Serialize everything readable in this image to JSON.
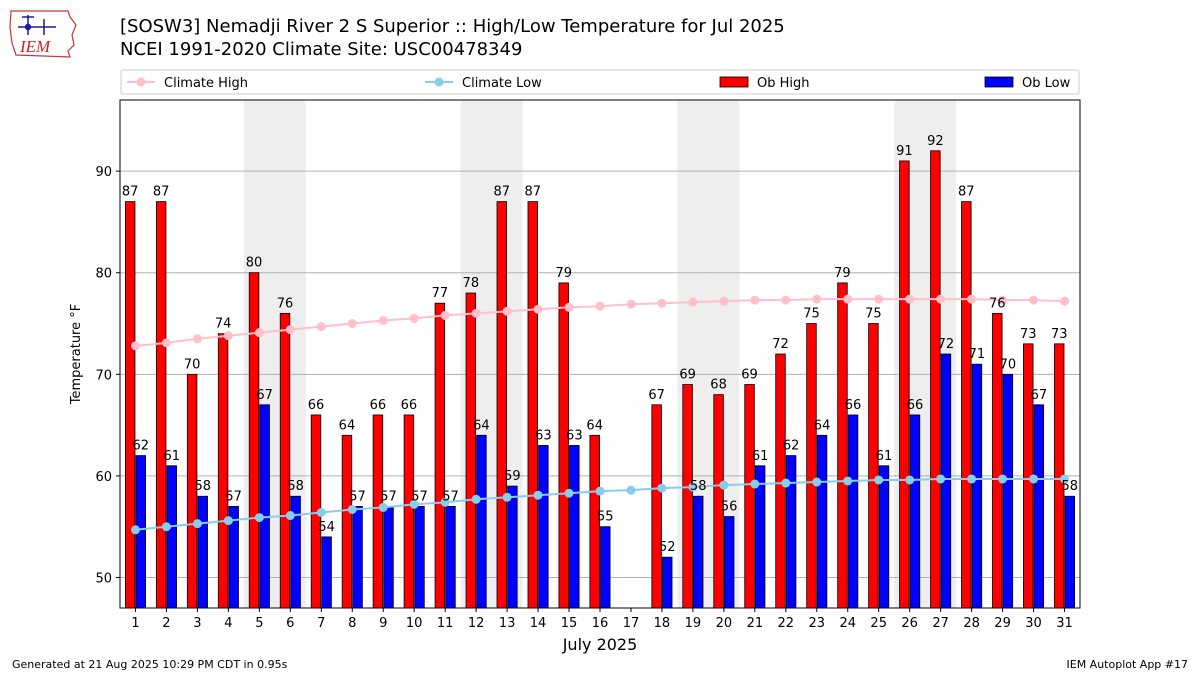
{
  "header": {
    "title_line1": "[SOSW3] Nemadji River 2 S Superior :: High/Low Temperature for Jul 2025",
    "title_line2": "NCEI 1991-2020 Climate Site: USC00478349",
    "logo_text": "IEM"
  },
  "footer": {
    "generated": "Generated at 21 Aug 2025 10:29 PM CDT in 0.95s",
    "app": "IEM Autoplot App #17"
  },
  "colors": {
    "ob_high": "#ff0000",
    "ob_low": "#0000ff",
    "climate_high": "#ffc0cb",
    "climate_low": "#87ceeb",
    "weekend_shade": "#eeeeee",
    "grid": "#b0b0b0"
  },
  "chart_data": {
    "type": "bar",
    "xlabel": "July 2025",
    "ylabel": "Temperature °F",
    "ylim": [
      47,
      97
    ],
    "yticks": [
      50,
      60,
      70,
      80,
      90
    ],
    "grid": "horizontal",
    "legend_position": "top",
    "categories": [
      "1",
      "2",
      "3",
      "4",
      "5",
      "6",
      "7",
      "8",
      "9",
      "10",
      "11",
      "12",
      "13",
      "14",
      "15",
      "16",
      "17",
      "18",
      "19",
      "20",
      "21",
      "22",
      "23",
      "24",
      "25",
      "26",
      "27",
      "28",
      "29",
      "30",
      "31"
    ],
    "shaded_days": [
      5,
      6,
      12,
      13,
      19,
      20,
      26,
      27
    ],
    "series": [
      {
        "name": "Climate High",
        "kind": "line",
        "values": [
          72.8,
          73.1,
          73.5,
          73.8,
          74.1,
          74.4,
          74.7,
          75.0,
          75.3,
          75.5,
          75.8,
          76.0,
          76.2,
          76.4,
          76.6,
          76.7,
          76.9,
          77.0,
          77.1,
          77.2,
          77.3,
          77.3,
          77.4,
          77.4,
          77.4,
          77.4,
          77.4,
          77.4,
          77.3,
          77.3,
          77.2
        ]
      },
      {
        "name": "Climate Low",
        "kind": "line",
        "values": [
          54.7,
          55.0,
          55.3,
          55.6,
          55.9,
          56.1,
          56.4,
          56.7,
          56.9,
          57.2,
          57.4,
          57.7,
          57.9,
          58.1,
          58.3,
          58.5,
          58.6,
          58.8,
          58.9,
          59.1,
          59.2,
          59.3,
          59.4,
          59.5,
          59.6,
          59.6,
          59.7,
          59.7,
          59.7,
          59.7,
          59.7
        ]
      },
      {
        "name": "Ob High",
        "kind": "bar",
        "values": [
          87,
          87,
          70,
          74,
          80,
          76,
          66,
          64,
          66,
          66,
          77,
          78,
          87,
          87,
          79,
          64,
          null,
          67,
          69,
          68,
          69,
          72,
          75,
          79,
          75,
          91,
          92,
          87,
          76,
          73,
          73
        ]
      },
      {
        "name": "Ob Low",
        "kind": "bar",
        "values": [
          62,
          61,
          58,
          57,
          67,
          58,
          54,
          57,
          57,
          57,
          57,
          64,
          59,
          63,
          63,
          55,
          null,
          52,
          58,
          56,
          61,
          62,
          64,
          66,
          61,
          66,
          72,
          71,
          70,
          67,
          58
        ]
      }
    ]
  }
}
